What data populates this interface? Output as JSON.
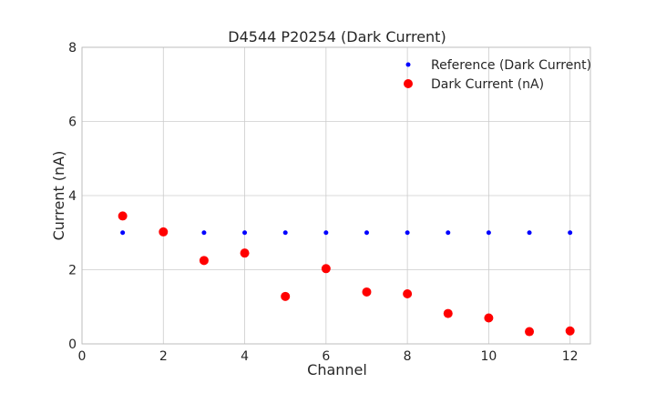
{
  "chart_data": {
    "type": "scatter",
    "title": "D4544 P20254 (Dark Current)",
    "xlabel": "Channel",
    "ylabel": "Current (nA)",
    "xlim": [
      0,
      12.5
    ],
    "ylim": [
      0,
      8
    ],
    "xticks": [
      0,
      2,
      4,
      6,
      8,
      10,
      12
    ],
    "yticks": [
      0,
      2,
      4,
      6,
      8
    ],
    "grid": true,
    "legend_position": "top-right",
    "series": [
      {
        "name": "Reference (Dark Current)",
        "color": "#0000ff",
        "marker": "small-dot",
        "x": [
          1,
          2,
          3,
          4,
          5,
          6,
          7,
          8,
          9,
          10,
          11,
          12
        ],
        "y": [
          3.0,
          3.0,
          3.0,
          3.0,
          3.0,
          3.0,
          3.0,
          3.0,
          3.0,
          3.0,
          3.0,
          3.0
        ]
      },
      {
        "name": "Dark Current (nA)",
        "color": "#ff0000",
        "marker": "large-dot",
        "x": [
          1,
          2,
          3,
          4,
          5,
          6,
          7,
          8,
          9,
          10,
          11,
          12
        ],
        "y": [
          3.45,
          3.02,
          2.25,
          2.45,
          1.28,
          2.03,
          1.4,
          1.35,
          0.82,
          0.7,
          0.33,
          0.35
        ]
      }
    ]
  }
}
